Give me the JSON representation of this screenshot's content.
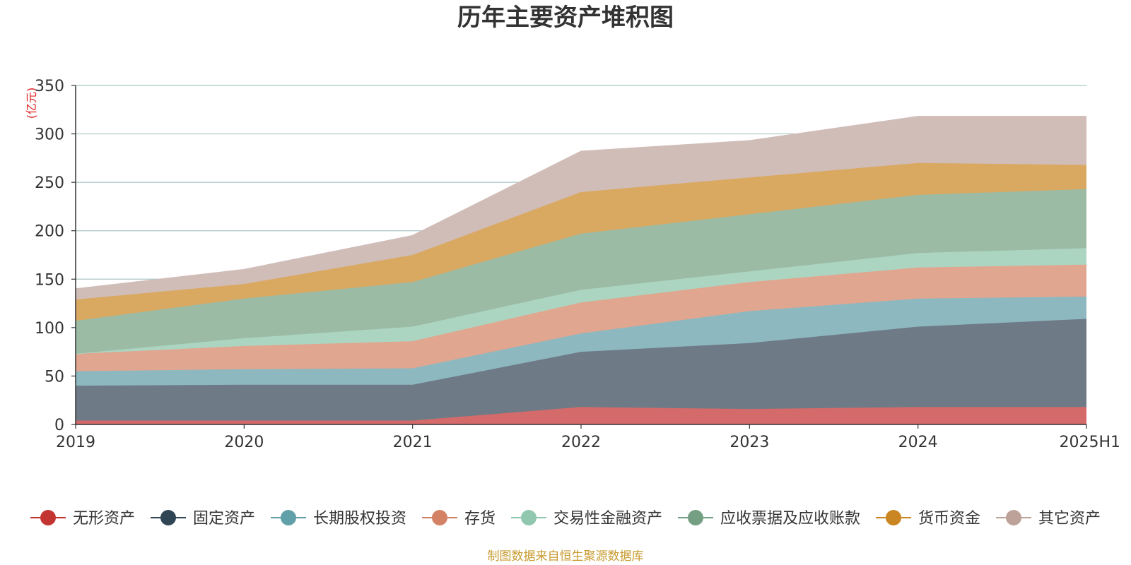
{
  "chart_data": {
    "type": "area",
    "stacked": true,
    "title": "历年主要资产堆积图",
    "unit_label": "(亿元)",
    "categories": [
      "2019",
      "2020",
      "2021",
      "2022",
      "2023",
      "2024",
      "2025H1"
    ],
    "ylim": [
      0,
      350
    ],
    "yticks": [
      0,
      50,
      100,
      150,
      200,
      250,
      300,
      350
    ],
    "grid": true,
    "legend_position": "bottom",
    "series": [
      {
        "name": "无形资产",
        "color": "#c23531",
        "area_color": "#d46a69",
        "values": [
          4,
          4,
          4,
          18,
          16,
          18,
          18
        ]
      },
      {
        "name": "固定资产",
        "color": "#2f4554",
        "area_color": "#6e7b87",
        "values": [
          36,
          37,
          37,
          57,
          68,
          83,
          91
        ]
      },
      {
        "name": "长期股权投资",
        "color": "#61a0a8",
        "area_color": "#8eb8c0",
        "values": [
          15,
          16,
          17,
          19,
          33,
          29,
          23
        ]
      },
      {
        "name": "存货",
        "color": "#d48265",
        "area_color": "#e0a690",
        "values": [
          18,
          24,
          28,
          32,
          30,
          32,
          33
        ]
      },
      {
        "name": "交易性金融资产",
        "color": "#91c7ae",
        "area_color": "#acd5c1",
        "values": [
          0,
          8,
          15,
          13,
          11,
          15,
          17
        ]
      },
      {
        "name": "应收票据及应收账款",
        "color": "#749f83",
        "area_color": "#9bbba5",
        "values": [
          34,
          41,
          46,
          58,
          59,
          60,
          61
        ]
      },
      {
        "name": "货币资金",
        "color": "#ca8622",
        "area_color": "#d9a962",
        "values": [
          22,
          15,
          28,
          43,
          38,
          33,
          25
        ]
      },
      {
        "name": "其它资产",
        "color": "#bda29a",
        "area_color": "#d0bdb8",
        "values": [
          11,
          15,
          20,
          42,
          38,
          48,
          50
        ]
      }
    ]
  },
  "footer": "制图数据来自恒生聚源数据库"
}
